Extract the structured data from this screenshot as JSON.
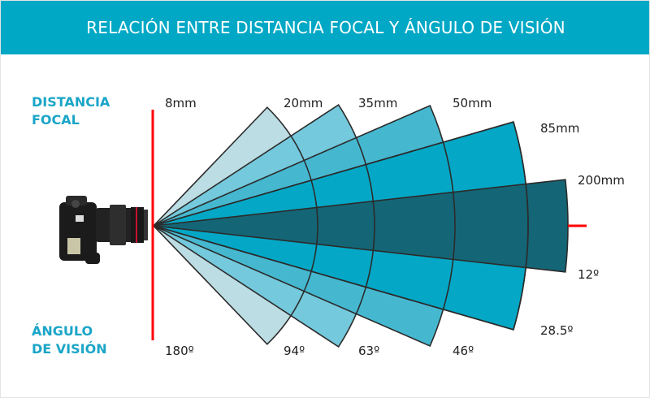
{
  "header": {
    "title": "RELACIÓN ENTRE DISTANCIA FOCAL Y ÁNGULO DE VISIÓN"
  },
  "left_labels": {
    "focal_line1": "DISTANCIA",
    "focal_line2": "FOCAL",
    "angle_line1": "ÁNGULO",
    "angle_line2": "DE VISIÓN"
  },
  "lenses": [
    {
      "focal": "8mm",
      "angle": "180º",
      "color": "#bcdde3"
    },
    {
      "focal": "20mm",
      "angle": "94º",
      "color": "#74c9dc"
    },
    {
      "focal": "35mm",
      "angle": "63º",
      "color": "#45b8d0"
    },
    {
      "focal": "50mm",
      "angle": "46º",
      "color": "#04a8c6"
    },
    {
      "focal": "85mm",
      "angle": "28.5º",
      "color": "#04a8c6"
    },
    {
      "focal": "200mm",
      "angle": "12º",
      "color": "#146676"
    }
  ],
  "colors": {
    "header": "#00a8c6",
    "marker": "#ff0000",
    "accent_text": "#1aa5c7"
  },
  "icons": {
    "camera": "camera-icon"
  }
}
